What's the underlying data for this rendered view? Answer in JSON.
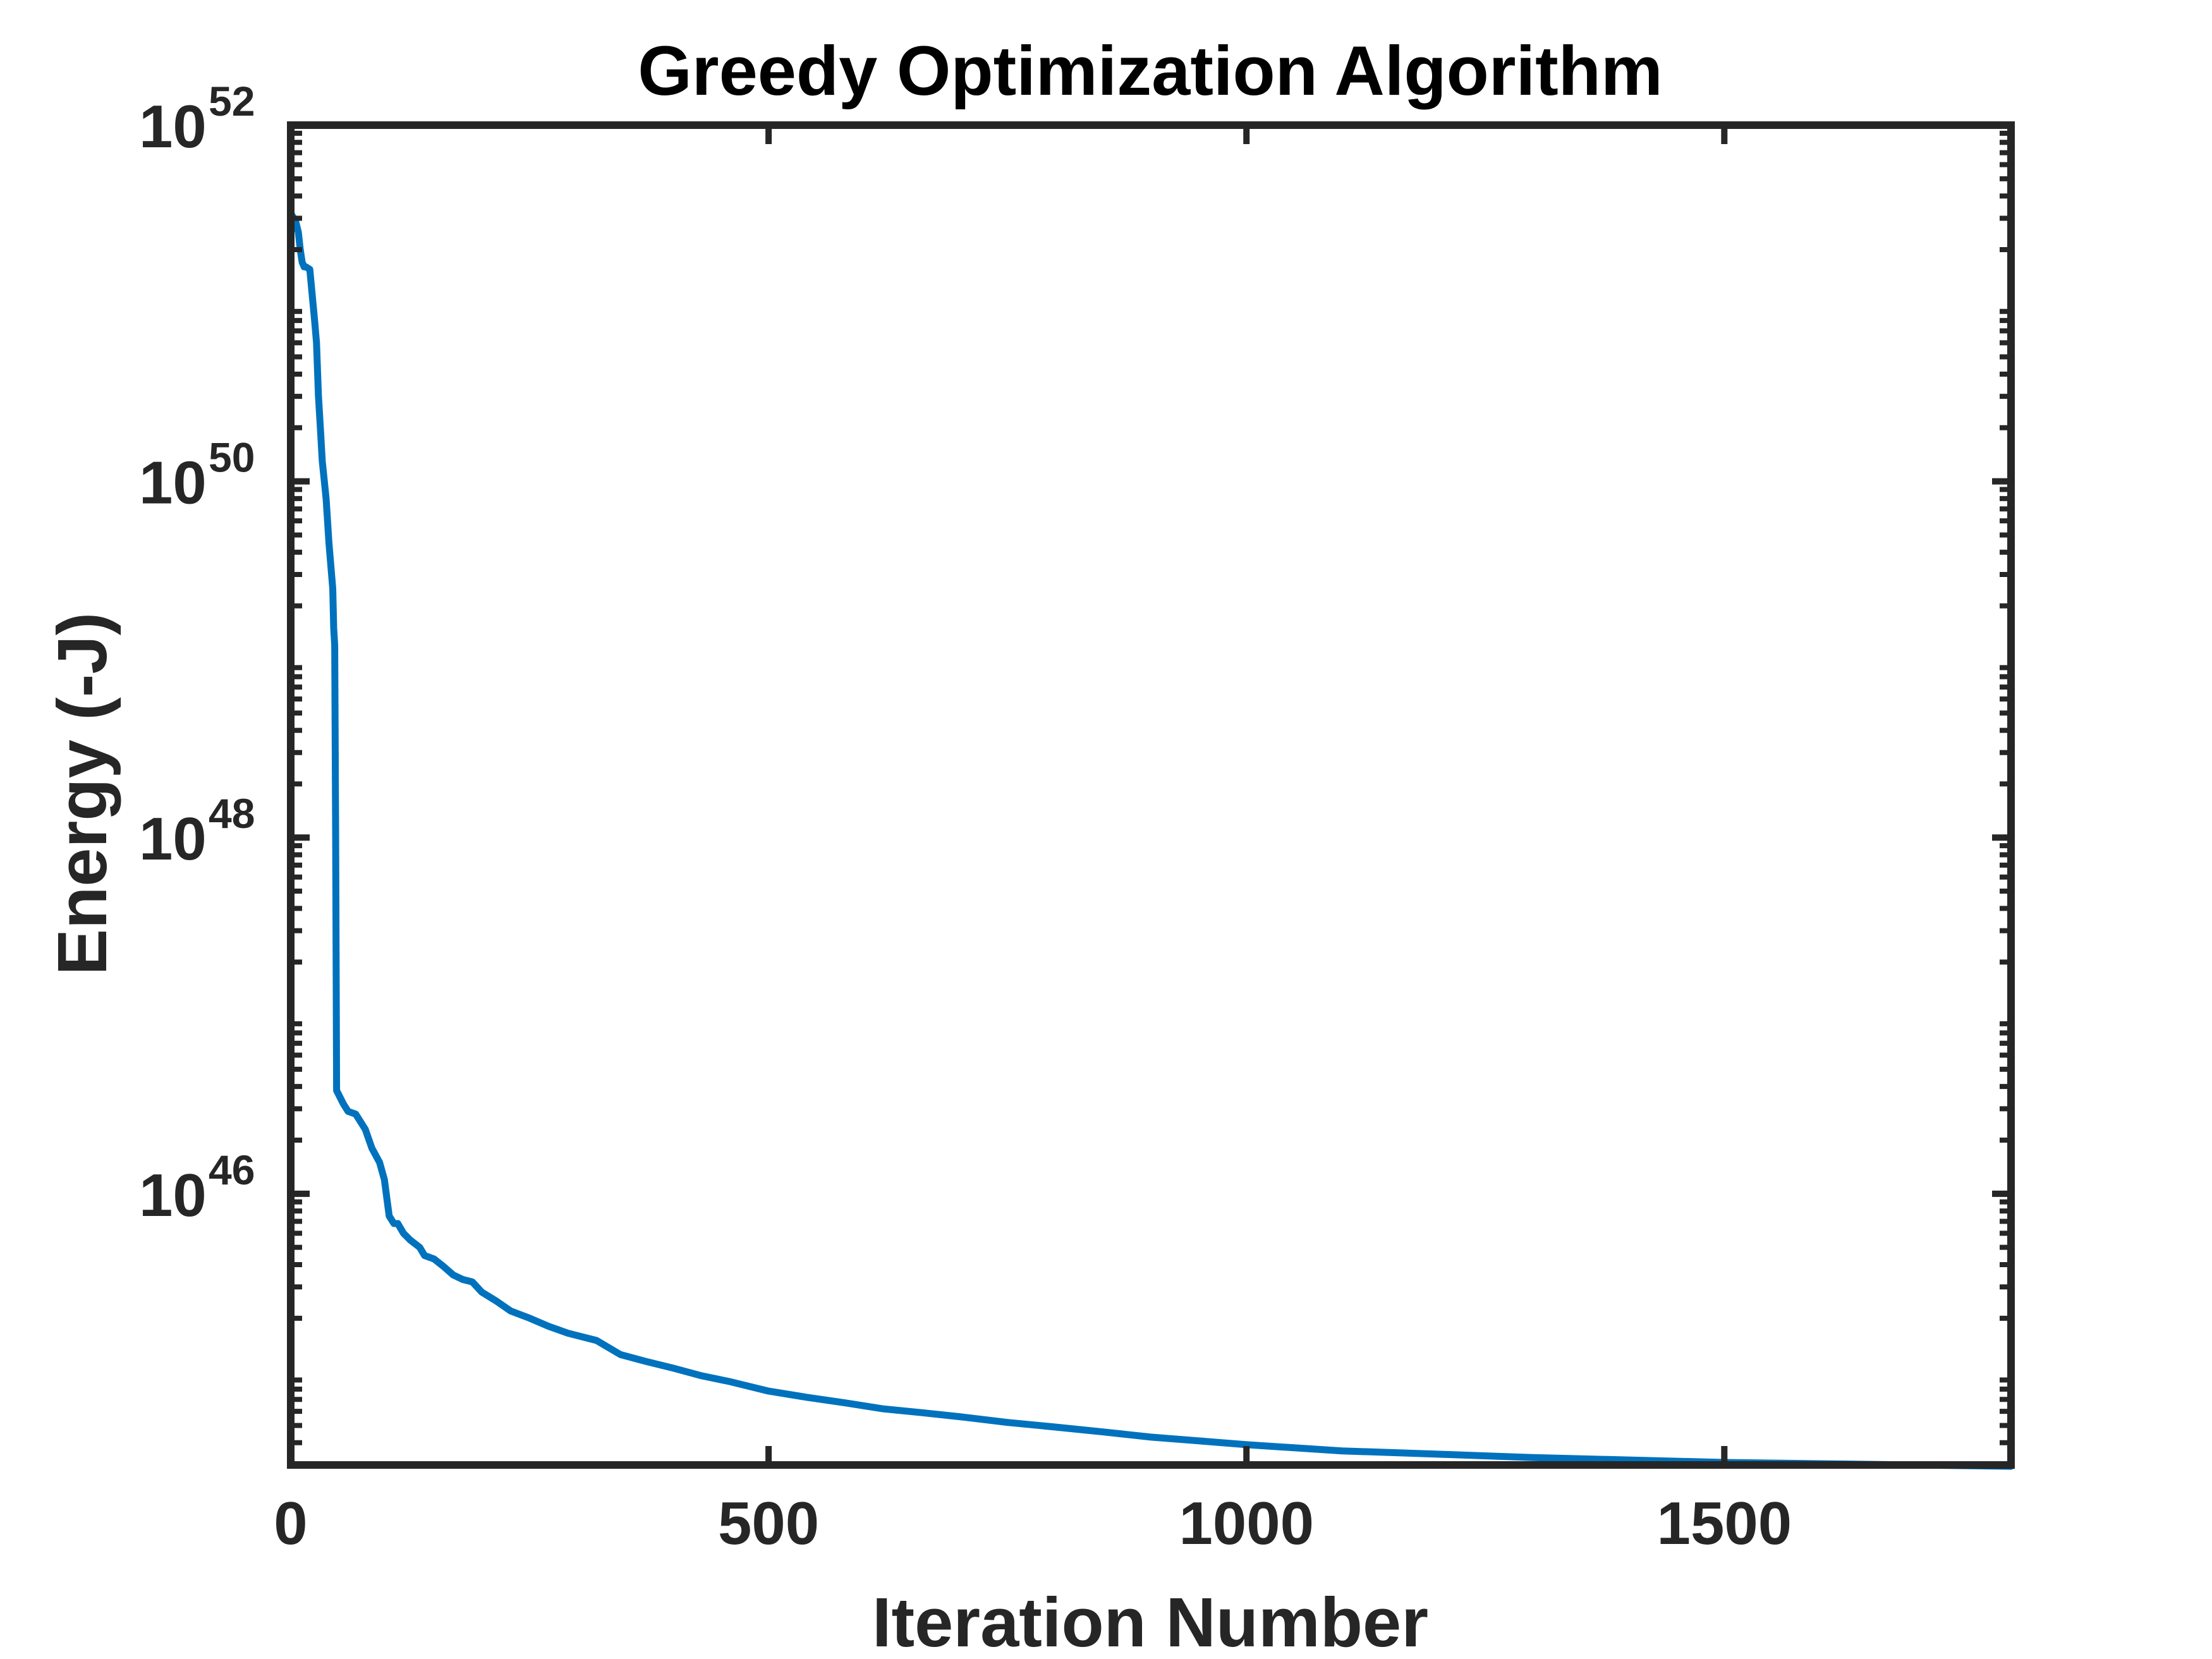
{
  "chart_data": {
    "type": "line",
    "title": "Greedy Optimization Algorithm",
    "xlabel": "Iteration Number",
    "ylabel": "Energy (-J)",
    "x_scale": "linear",
    "y_scale": "log",
    "xlim": [
      0,
      1800
    ],
    "ylim": [
      3e+44,
      1e+52
    ],
    "x_ticks": [
      {
        "value": 0,
        "label": "0"
      },
      {
        "value": 500,
        "label": "500"
      },
      {
        "value": 1000,
        "label": "1000"
      },
      {
        "value": 1500,
        "label": "1500"
      }
    ],
    "y_ticks": [
      {
        "value": 46,
        "base": "10",
        "exponent": "46"
      },
      {
        "value": 48,
        "base": "10",
        "exponent": "48"
      },
      {
        "value": 50,
        "base": "10",
        "exponent": "50"
      },
      {
        "value": 52,
        "base": "10",
        "exponent": "52"
      }
    ],
    "grid": false,
    "box": true,
    "series": [
      {
        "color": "#0072BD",
        "x": [
          0,
          5,
          8,
          10,
          12,
          14,
          16,
          20,
          25,
          27,
          29,
          31,
          33,
          37,
          40,
          44,
          45,
          46,
          47,
          48,
          55,
          60,
          68,
          78,
          85,
          93,
          98,
          103,
          108,
          112,
          118,
          125,
          135,
          140,
          150,
          160,
          170,
          180,
          190,
          200,
          215,
          230,
          250,
          270,
          290,
          320,
          345,
          370,
          400,
          430,
          460,
          500,
          540,
          580,
          620,
          660,
          700,
          750,
          800,
          850,
          900,
          950,
          1000,
          1100,
          1200,
          1300,
          1400,
          1500,
          1600,
          1700,
          1800
        ],
        "y": [
          3.2e+51,
          2.9e+51,
          2.5e+51,
          2e+51,
          1.7e+51,
          1.6e+51,
          1.6e+51,
          1.55e+51,
          8e+50,
          6e+50,
          3e+50,
          2e+50,
          1.3e+50,
          8e+49,
          4.5e+49,
          2.5e+49,
          1.5e+49,
          1.2e+49,
          1e+48,
          3.8e+46,
          3.2e+46,
          2.9e+46,
          2.8e+46,
          2.3e+46,
          1.8e+46,
          1.5e+46,
          1.2e+46,
          7.5e+45,
          6.8e+45,
          6.8e+45,
          6e+45,
          5.5e+45,
          5e+45,
          4.5e+45,
          4.3e+45,
          3.9e+45,
          3.5e+45,
          3.3e+45,
          3.2e+45,
          2.8e+45,
          2.5e+45,
          2.2e+45,
          2e+45,
          1.8e+45,
          1.65e+45,
          1.5e+45,
          1.25e+45,
          1.15e+45,
          1.05e+45,
          9.5e+44,
          8.8e+44,
          7.8e+44,
          7.2e+44,
          6.7e+44,
          6.2e+44,
          5.9e+44,
          5.6e+44,
          5.2e+44,
          4.9e+44,
          4.6e+44,
          4.3e+44,
          4.1e+44,
          3.9e+44,
          3.6e+44,
          3.45e+44,
          3.3e+44,
          3.2e+44,
          3.1e+44,
          3.05e+44,
          3e+44,
          2.95e+44
        ]
      }
    ]
  }
}
